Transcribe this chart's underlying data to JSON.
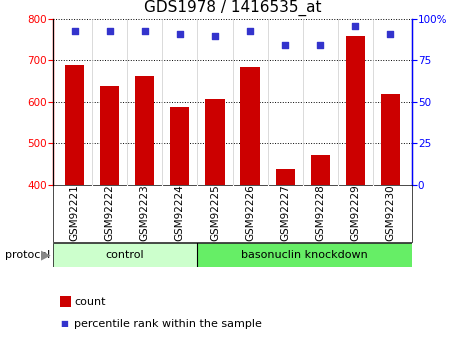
{
  "title": "GDS1978 / 1416535_at",
  "categories": [
    "GSM92221",
    "GSM92222",
    "GSM92223",
    "GSM92224",
    "GSM92225",
    "GSM92226",
    "GSM92227",
    "GSM92228",
    "GSM92229",
    "GSM92230"
  ],
  "counts": [
    690,
    638,
    663,
    588,
    607,
    683,
    437,
    472,
    760,
    618
  ],
  "percentiles": [
    93,
    93,
    93,
    91,
    90,
    93,
    84,
    84,
    96,
    91
  ],
  "bar_color": "#cc0000",
  "dot_color": "#3333cc",
  "ylim_left": [
    400,
    800
  ],
  "ylim_right": [
    0,
    100
  ],
  "yticks_left": [
    400,
    500,
    600,
    700,
    800
  ],
  "yticks_right": [
    0,
    25,
    50,
    75,
    100
  ],
  "groups": [
    {
      "label": "control",
      "start": 0,
      "end": 4
    },
    {
      "label": "basonuclin knockdown",
      "start": 4,
      "end": 10
    }
  ],
  "group_colors": [
    "#ccffcc",
    "#66ee66"
  ],
  "protocol_label": "protocol",
  "legend_count_label": "count",
  "legend_pct_label": "percentile rank within the sample",
  "title_fontsize": 11,
  "tick_fontsize": 7.5,
  "xtick_bg": "#d8d8d8"
}
